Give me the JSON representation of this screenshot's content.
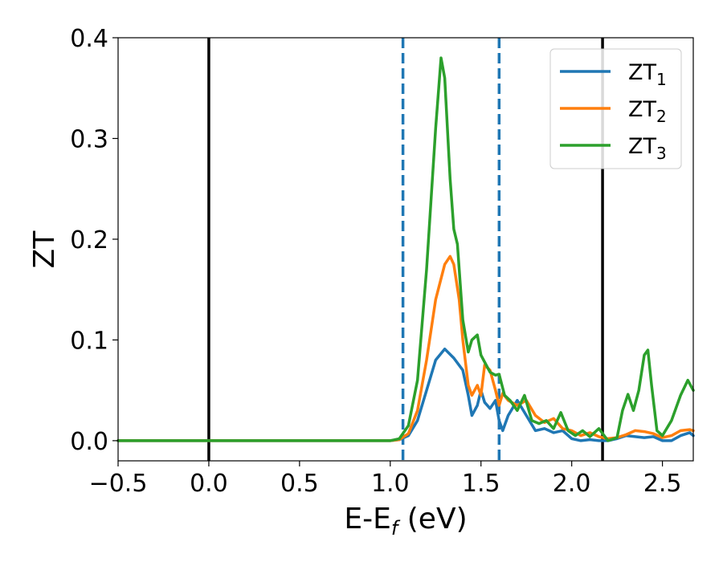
{
  "chart_data": {
    "type": "line",
    "title": "",
    "xlabel": "E-E",
    "xlabel_sub": "f",
    "xlabel_unit": " (eV)",
    "ylabel": "ZT",
    "xlim": [
      -0.5,
      2.67
    ],
    "ylim": [
      -0.02,
      0.4
    ],
    "x_ticks": [
      -0.5,
      0.0,
      0.5,
      1.0,
      1.5,
      2.0,
      2.5
    ],
    "x_tick_labels": [
      "−0.5",
      "0.0",
      "0.5",
      "1.0",
      "1.5",
      "2.0",
      "2.5"
    ],
    "y_ticks": [
      0.0,
      0.1,
      0.2,
      0.3,
      0.4
    ],
    "y_tick_labels": [
      "0.0",
      "0.1",
      "0.2",
      "0.3",
      "0.4"
    ],
    "grid": false,
    "legend_position": "top-right",
    "vertical_lines": [
      {
        "x": 0.0,
        "style": "solid",
        "color": "#000000"
      },
      {
        "x": 1.07,
        "style": "dashed",
        "color": "#1f77b4"
      },
      {
        "x": 1.6,
        "style": "dashed",
        "color": "#1f77b4"
      },
      {
        "x": 2.17,
        "style": "solid",
        "color": "#000000"
      }
    ],
    "series": [
      {
        "name": "ZT",
        "name_sub": "1",
        "color": "#1f77b4",
        "x": [
          -0.5,
          1.0,
          1.05,
          1.1,
          1.15,
          1.2,
          1.25,
          1.3,
          1.35,
          1.4,
          1.43,
          1.45,
          1.48,
          1.5,
          1.52,
          1.55,
          1.58,
          1.6,
          1.62,
          1.65,
          1.7,
          1.75,
          1.8,
          1.85,
          1.9,
          1.95,
          2.0,
          2.05,
          2.1,
          2.15,
          2.2,
          2.25,
          2.3,
          2.35,
          2.4,
          2.45,
          2.5,
          2.55,
          2.6,
          2.65,
          2.67
        ],
        "y": [
          0.0,
          0.0,
          0.001,
          0.005,
          0.02,
          0.05,
          0.08,
          0.091,
          0.082,
          0.07,
          0.045,
          0.025,
          0.035,
          0.05,
          0.038,
          0.032,
          0.04,
          0.02,
          0.01,
          0.025,
          0.04,
          0.025,
          0.01,
          0.012,
          0.008,
          0.01,
          0.002,
          0.0,
          0.001,
          0.0,
          0.0,
          0.002,
          0.005,
          0.004,
          0.003,
          0.004,
          0.0,
          0.0,
          0.005,
          0.008,
          0.005
        ]
      },
      {
        "name": "ZT",
        "name_sub": "2",
        "color": "#ff7f0e",
        "x": [
          -0.5,
          1.0,
          1.05,
          1.1,
          1.15,
          1.2,
          1.25,
          1.3,
          1.33,
          1.35,
          1.38,
          1.4,
          1.43,
          1.45,
          1.48,
          1.5,
          1.52,
          1.55,
          1.58,
          1.6,
          1.62,
          1.65,
          1.7,
          1.75,
          1.8,
          1.85,
          1.9,
          1.95,
          2.0,
          2.05,
          2.1,
          2.15,
          2.2,
          2.25,
          2.3,
          2.35,
          2.4,
          2.45,
          2.5,
          2.55,
          2.6,
          2.65,
          2.67
        ],
        "y": [
          0.0,
          0.0,
          0.001,
          0.007,
          0.03,
          0.08,
          0.14,
          0.175,
          0.183,
          0.175,
          0.14,
          0.1,
          0.055,
          0.045,
          0.055,
          0.045,
          0.075,
          0.07,
          0.05,
          0.035,
          0.047,
          0.04,
          0.035,
          0.04,
          0.025,
          0.018,
          0.022,
          0.012,
          0.01,
          0.005,
          0.008,
          0.004,
          0.002,
          0.003,
          0.006,
          0.01,
          0.009,
          0.007,
          0.003,
          0.005,
          0.01,
          0.011,
          0.01
        ]
      },
      {
        "name": "ZT",
        "name_sub": "3",
        "color": "#2ca02c",
        "x": [
          -0.5,
          1.0,
          1.05,
          1.1,
          1.15,
          1.2,
          1.25,
          1.28,
          1.3,
          1.33,
          1.35,
          1.37,
          1.4,
          1.43,
          1.45,
          1.48,
          1.5,
          1.52,
          1.55,
          1.58,
          1.6,
          1.63,
          1.66,
          1.7,
          1.74,
          1.78,
          1.82,
          1.86,
          1.9,
          1.94,
          1.98,
          2.02,
          2.06,
          2.1,
          2.15,
          2.2,
          2.25,
          2.28,
          2.31,
          2.34,
          2.37,
          2.4,
          2.42,
          2.44,
          2.47,
          2.5,
          2.55,
          2.6,
          2.64,
          2.67
        ],
        "y": [
          0.0,
          0.0,
          0.002,
          0.015,
          0.06,
          0.17,
          0.31,
          0.38,
          0.36,
          0.26,
          0.21,
          0.195,
          0.12,
          0.088,
          0.1,
          0.105,
          0.085,
          0.078,
          0.068,
          0.065,
          0.066,
          0.045,
          0.04,
          0.03,
          0.045,
          0.02,
          0.017,
          0.02,
          0.012,
          0.028,
          0.01,
          0.005,
          0.01,
          0.004,
          0.012,
          0.0,
          0.003,
          0.03,
          0.046,
          0.03,
          0.05,
          0.085,
          0.09,
          0.055,
          0.01,
          0.005,
          0.02,
          0.045,
          0.06,
          0.05
        ]
      }
    ]
  }
}
